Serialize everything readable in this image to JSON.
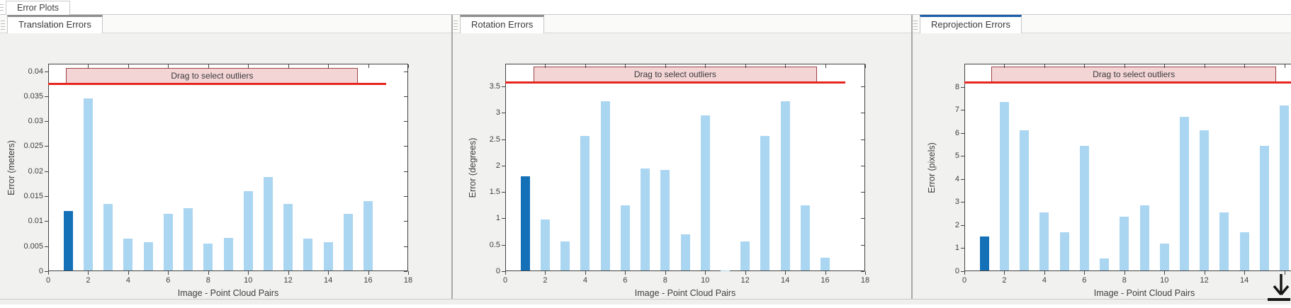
{
  "window": {
    "top_tab": "Error Plots"
  },
  "panels": [
    {
      "tab": "Translation Errors",
      "focused": false
    },
    {
      "tab": "Rotation Errors",
      "focused": false
    },
    {
      "tab": "Reprojection Errors",
      "focused": true
    }
  ],
  "chart_data": [
    {
      "type": "bar",
      "title": "Translation Errors",
      "xlabel": "Image - Point Cloud Pairs",
      "ylabel": "Error (meters)",
      "x": [
        1,
        2,
        3,
        4,
        5,
        6,
        7,
        8,
        9,
        10,
        11,
        12,
        13,
        14,
        15,
        16
      ],
      "values": [
        0.012,
        0.0345,
        0.0135,
        0.0065,
        0.0058,
        0.0115,
        0.0126,
        0.0055,
        0.0067,
        0.016,
        0.0188,
        0.0135,
        0.0065,
        0.0058,
        0.0115,
        0.014
      ],
      "selected_bar": 1,
      "threshold": 0.0375,
      "threshold_line_x_end": 16.9,
      "outlier_band": {
        "label": "Drag to select outliers",
        "x_from": 0.9,
        "x_to": 15.5
      },
      "xlim": [
        0,
        18
      ],
      "ylim": [
        0,
        0.0415
      ],
      "xticks": [
        0,
        2,
        4,
        6,
        8,
        10,
        12,
        14,
        16,
        18
      ],
      "xticks_unlabeled": [],
      "yticks": [
        0,
        0.005,
        0.01,
        0.015,
        0.02,
        0.025,
        0.03,
        0.035,
        0.04
      ],
      "ytick_labels": [
        "0",
        "0.005",
        "0.01",
        "0.015",
        "0.02",
        "0.025",
        "0.03",
        "0.035",
        "0.04"
      ],
      "grid": false,
      "legend": null,
      "clipped_right": false
    },
    {
      "type": "bar",
      "title": "Rotation Errors",
      "xlabel": "Image - Point Cloud Pairs",
      "ylabel": "Error (degrees)",
      "x": [
        1,
        2,
        3,
        4,
        5,
        6,
        7,
        8,
        9,
        10,
        11,
        12,
        13,
        14,
        15,
        16
      ],
      "values": [
        1.8,
        0.98,
        0.56,
        2.56,
        3.22,
        1.25,
        1.95,
        1.92,
        0.7,
        2.95,
        0.02,
        0.56,
        2.56,
        3.22,
        1.25,
        0.25
      ],
      "selected_bar": 1,
      "threshold": 3.58,
      "threshold_line_x_end": 17.0,
      "outlier_band": {
        "label": "Drag to select outliers",
        "x_from": 1.4,
        "x_to": 15.6
      },
      "xlim": [
        0,
        18
      ],
      "ylim": [
        0,
        3.93
      ],
      "xticks": [
        0,
        2,
        4,
        6,
        8,
        10,
        12,
        14,
        16,
        18
      ],
      "xticks_unlabeled": [],
      "yticks": [
        0,
        0.5,
        1,
        1.5,
        2,
        2.5,
        3,
        3.5
      ],
      "ytick_labels": [
        "0",
        "0.5",
        "1",
        "1.5",
        "2",
        "2.5",
        "3",
        "3.5"
      ],
      "grid": false,
      "legend": null,
      "clipped_right": false
    },
    {
      "type": "bar",
      "title": "Reprojection Errors",
      "xlabel": "Image - Point Cloud Pairs",
      "ylabel": "Error (pixels)",
      "x": [
        1,
        2,
        3,
        4,
        5,
        6,
        7,
        8,
        9,
        10,
        11,
        12,
        13,
        14,
        15,
        16
      ],
      "values": [
        1.5,
        7.35,
        6.1,
        2.55,
        1.7,
        5.45,
        0.55,
        2.35,
        2.85,
        1.2,
        6.7,
        6.1,
        2.55,
        1.7,
        5.45,
        7.2
      ],
      "selected_bar": 1,
      "threshold": 8.2,
      "threshold_line_x_end": 18,
      "outlier_band": {
        "label": "Drag to select outliers",
        "x_from": 1.35,
        "x_to": 15.6
      },
      "xlim": [
        0,
        18
      ],
      "ylim": [
        0,
        9.0
      ],
      "xticks": [
        0,
        2,
        4,
        6,
        8,
        10,
        12,
        14
      ],
      "xticks_unlabeled": [
        16
      ],
      "yticks": [
        0,
        1,
        2,
        3,
        4,
        5,
        6,
        7,
        8
      ],
      "ytick_labels": [
        "0",
        "1",
        "2",
        "3",
        "4",
        "5",
        "6",
        "7",
        "8"
      ],
      "grid": false,
      "legend": null,
      "clipped_right": true
    }
  ],
  "colors": {
    "bar_fill": "#ABD6F2",
    "bar_selected": "#1471B8",
    "threshold_red": "#E5261F",
    "band_fill": "#F4D5D6",
    "band_border": "#9C4345",
    "axis": "#444444",
    "text": "#3F3F3F",
    "panel_bg": "#F1F1EF",
    "tab_accent_gray": "#8E8E8E",
    "tab_accent_blue": "#1C5EA9",
    "splitter": "#A8A8A8"
  },
  "icons": {
    "panel_grip": "drag-grip",
    "document_grip": "drag-grip",
    "export_arrow": "download-arrow"
  }
}
